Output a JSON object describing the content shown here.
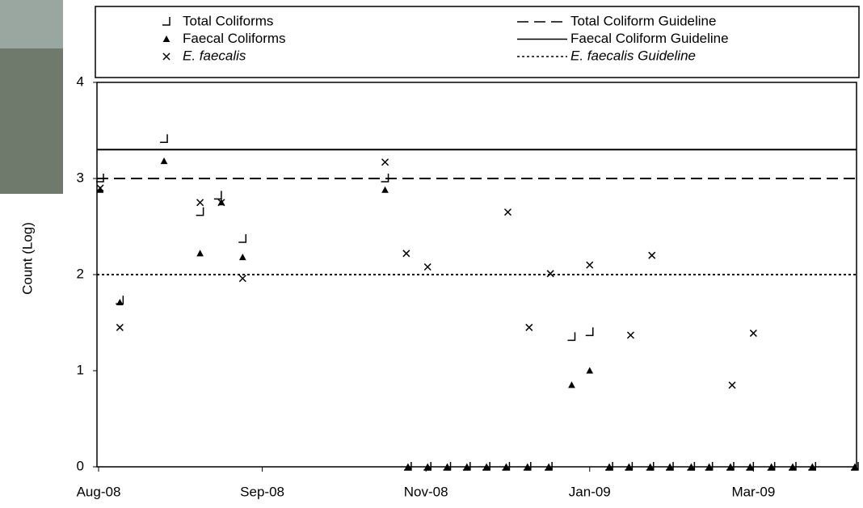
{
  "chart_data": {
    "type": "scatter",
    "ylabel": "Count (Log)",
    "ylim": [
      0,
      4
    ],
    "yticks": [
      0,
      1,
      2,
      3,
      4
    ],
    "xlim": [
      0,
      4.63
    ],
    "xticks": [
      {
        "value": 0,
        "label": "Aug-08"
      },
      {
        "value": 1,
        "label": "Sep-08"
      },
      {
        "value": 2,
        "label": "Nov-08"
      },
      {
        "value": 3,
        "label": "Jan-09"
      },
      {
        "value": 4,
        "label": "Mar-09"
      }
    ],
    "color": "#000000",
    "series": [
      {
        "name": "Total Coliforms",
        "marker": "bracket",
        "x": [
          0.01,
          0.13,
          0.4,
          0.62,
          0.73,
          0.88,
          1.75,
          2.89,
          3.0,
          1.89,
          2.01,
          2.13,
          2.25,
          2.37,
          2.49,
          2.62,
          2.75,
          3.12,
          3.24,
          3.37,
          3.49,
          3.62,
          3.73,
          3.86,
          3.98,
          4.11,
          4.24,
          4.36,
          4.62
        ],
        "values": [
          3.0,
          1.73,
          3.41,
          2.65,
          2.82,
          2.37,
          3.0,
          1.35,
          1.4,
          0,
          0,
          0,
          0,
          0,
          0,
          0,
          0,
          0,
          0,
          0,
          0,
          0,
          0,
          0,
          0,
          0,
          0,
          0,
          0
        ]
      },
      {
        "name": "Faecal Coliforms",
        "marker": "triangle",
        "x": [
          0.01,
          0.13,
          0.4,
          0.62,
          0.75,
          0.88,
          1.75,
          2.89,
          3.0,
          1.89,
          2.01,
          2.13,
          2.25,
          2.37,
          2.49,
          2.62,
          2.75,
          3.12,
          3.24,
          3.37,
          3.49,
          3.62,
          3.73,
          3.86,
          3.98,
          4.11,
          4.24,
          4.36,
          4.62
        ],
        "values": [
          2.88,
          1.71,
          3.18,
          2.22,
          2.75,
          2.18,
          2.88,
          0.85,
          1.0,
          0,
          0,
          0,
          0,
          0,
          0,
          0,
          0,
          0,
          0,
          0,
          0,
          0,
          0,
          0,
          0,
          0,
          0,
          0,
          0
        ]
      },
      {
        "name": "E. faecalis",
        "marker": "cross",
        "italic": true,
        "x": [
          0.01,
          0.13,
          0.62,
          0.75,
          0.88,
          1.75,
          1.88,
          2.01,
          2.5,
          2.63,
          2.76,
          3.0,
          3.25,
          3.38,
          3.87,
          4.0
        ],
        "values": [
          2.9,
          1.45,
          2.75,
          2.75,
          1.96,
          3.17,
          2.22,
          2.08,
          2.65,
          1.45,
          2.01,
          2.1,
          1.37,
          2.2,
          0.85,
          1.39
        ]
      }
    ],
    "guidelines": [
      {
        "name": "Total Coliform Guideline",
        "value": 3,
        "dash": "dashed"
      },
      {
        "name": "Faecal Coliform Guideline",
        "value": 3.3,
        "dash": "solid"
      },
      {
        "name": "E. faecalis Guideline",
        "value": 2,
        "dash": "dotted",
        "italic": true
      }
    ]
  }
}
